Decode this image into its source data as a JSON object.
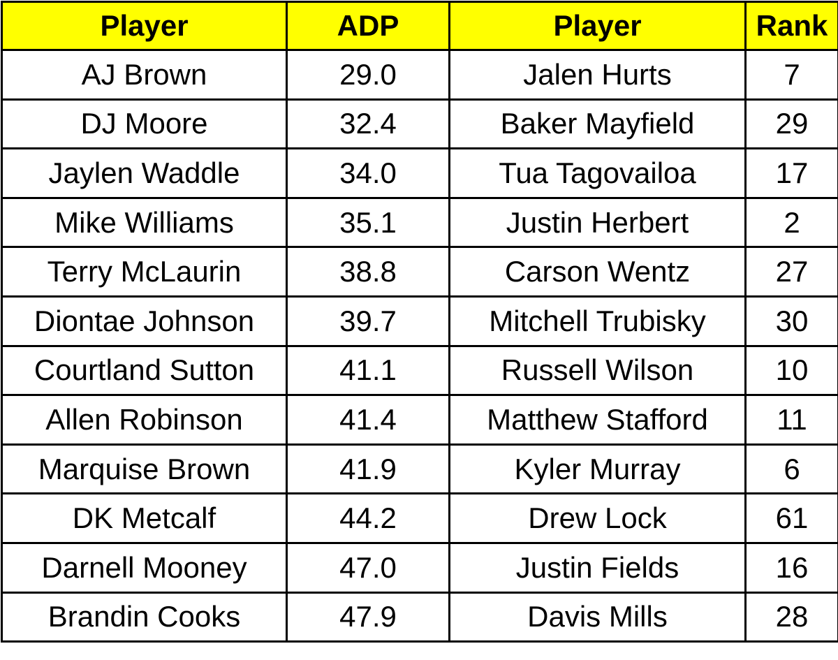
{
  "table": {
    "header": [
      "Player",
      "ADP",
      "Player",
      "Rank"
    ],
    "rows": [
      [
        "AJ Brown",
        "29.0",
        "Jalen Hurts",
        7
      ],
      [
        "DJ Moore",
        "32.4",
        "Baker Mayfield",
        29
      ],
      [
        "Jaylen Waddle",
        "34.0",
        "Tua Tagovailoa",
        17
      ],
      [
        "Mike Williams",
        "35.1",
        "Justin Herbert",
        2
      ],
      [
        "Terry McLaurin",
        "38.8",
        "Carson Wentz",
        27
      ],
      [
        "Diontae Johnson",
        "39.7",
        "Mitchell Trubisky",
        30
      ],
      [
        "Courtland Sutton",
        "41.1",
        "Russell Wilson",
        10
      ],
      [
        "Allen Robinson",
        "41.4",
        "Matthew Stafford",
        11
      ],
      [
        "Marquise Brown",
        "41.9",
        "Kyler Murray",
        6
      ],
      [
        "DK Metcalf",
        "44.2",
        "Drew Lock",
        61
      ],
      [
        "Darnell Mooney",
        "47.0",
        "Justin Fields",
        16
      ],
      [
        "Brandin Cooks",
        "47.9",
        "Davis Mills",
        28
      ]
    ]
  }
}
